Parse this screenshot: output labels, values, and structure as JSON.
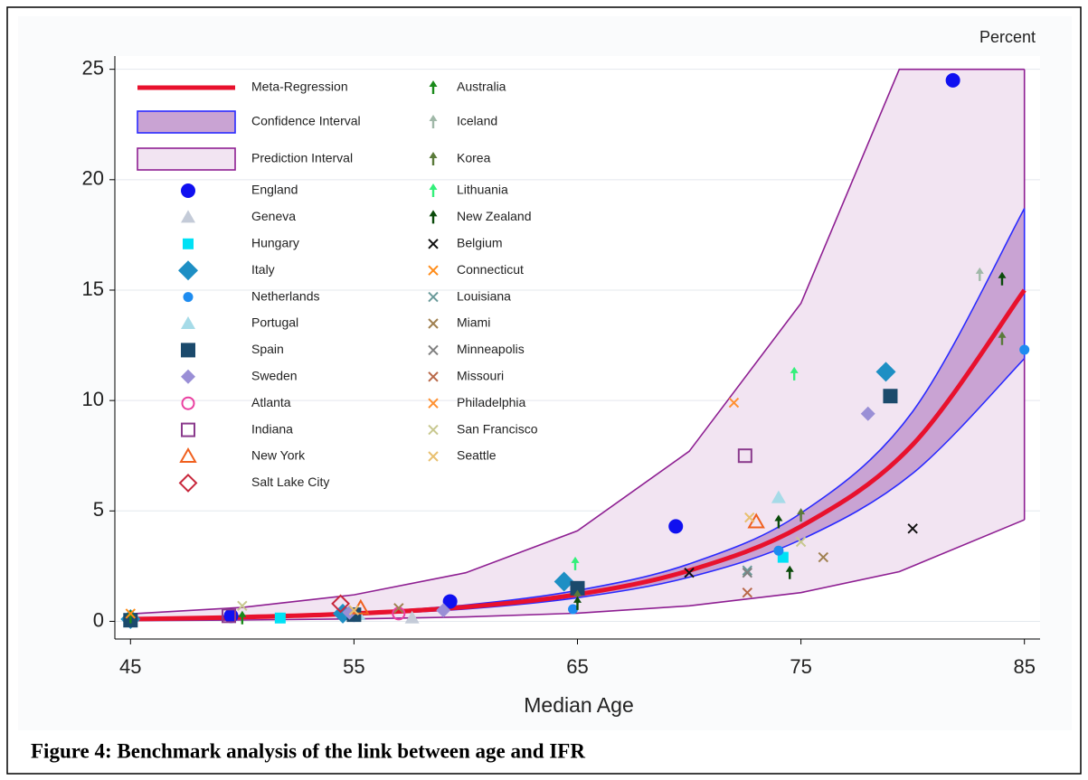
{
  "chart_data": {
    "type": "scatter",
    "ylabel": "Percent",
    "xlabel": "Median Age",
    "caption": "Figure 4: Benchmark analysis of the link between age and IFR",
    "xlim": [
      44.3,
      85.7
    ],
    "ylim": [
      -0.8,
      25.6
    ],
    "xticks": [
      45,
      55,
      65,
      75,
      85
    ],
    "yticks": [
      0,
      5,
      10,
      15,
      20,
      25
    ],
    "grid": true,
    "fits": [
      {
        "name": "Meta-Regression",
        "kind": "line",
        "color": "#e8112d",
        "x": [
          45,
          50,
          55,
          60,
          65,
          70,
          75,
          80,
          85
        ],
        "values": [
          0.1,
          0.19,
          0.35,
          0.65,
          1.22,
          2.3,
          4.3,
          8.0,
          15.0
        ]
      },
      {
        "name": "Confidence Interval",
        "kind": "band",
        "color": "#2a2aff",
        "fill": "#c9a3d3",
        "x": [
          45,
          50,
          55,
          60,
          65,
          70,
          75,
          80,
          85
        ],
        "lower": [
          0.08,
          0.16,
          0.3,
          0.56,
          1.07,
          2.0,
          3.7,
          6.7,
          11.9
        ],
        "upper": [
          0.12,
          0.22,
          0.4,
          0.74,
          1.4,
          2.6,
          4.9,
          9.5,
          18.7
        ]
      },
      {
        "name": "Prediction Interval",
        "kind": "band",
        "color": "#8e1f92",
        "fill": "#f2e4f2",
        "x": [
          45,
          50,
          55,
          60,
          65,
          70,
          75,
          79.4,
          85
        ],
        "lower": [
          0.03,
          0.06,
          0.11,
          0.2,
          0.37,
          0.7,
          1.3,
          2.25,
          4.6
        ],
        "upper": [
          0.34,
          0.63,
          1.2,
          2.2,
          4.1,
          7.7,
          14.4,
          25,
          25
        ]
      }
    ],
    "series": [
      {
        "name": "England",
        "marker": "circle",
        "color": "#1010f0",
        "x": [
          49.5,
          55,
          59.3,
          69.4,
          81.8
        ],
        "values": [
          0.25,
          0.3,
          0.9,
          4.3,
          24.5
        ]
      },
      {
        "name": "Geneva",
        "marker": "triangle",
        "color": "#c4cbd8",
        "x": [
          57.6
        ],
        "values": [
          0.15
        ]
      },
      {
        "name": "Hungary",
        "marker": "square-small",
        "color": "#00e1f5",
        "x": [
          51.7,
          74.2
        ],
        "values": [
          0.15,
          2.9
        ]
      },
      {
        "name": "Italy",
        "marker": "diamond",
        "color": "#1e8fc4",
        "x": [
          45,
          54.5,
          64.4,
          78.8
        ],
        "values": [
          0.1,
          0.35,
          1.8,
          11.3
        ]
      },
      {
        "name": "Netherlands",
        "marker": "dot",
        "color": "#1e8cf0",
        "x": [
          64.8,
          74,
          85
        ],
        "values": [
          0.55,
          3.2,
          12.3
        ]
      },
      {
        "name": "Portugal",
        "marker": "triangle",
        "color": "#a6dbe8",
        "x": [
          55.2,
          74
        ],
        "values": [
          0.3,
          5.6
        ]
      },
      {
        "name": "Spain",
        "marker": "square",
        "color": "#1b4a6c",
        "x": [
          45,
          55,
          65,
          79
        ],
        "values": [
          0.05,
          0.3,
          1.5,
          10.2
        ]
      },
      {
        "name": "Sweden",
        "marker": "diamond-small",
        "color": "#9a8fd6",
        "x": [
          54.8,
          59,
          78
        ],
        "values": [
          0.4,
          0.5,
          9.4
        ]
      },
      {
        "name": "Atlanta",
        "marker": "hollow-circle",
        "color": "#ea3fa0",
        "x": [
          57
        ],
        "values": [
          0.35
        ]
      },
      {
        "name": "Indiana",
        "marker": "hollow-square",
        "color": "#8a3a8c",
        "x": [
          49.4,
          72.5
        ],
        "values": [
          0.25,
          7.5
        ]
      },
      {
        "name": "New York",
        "marker": "hollow-triangle",
        "color": "#f0601e",
        "x": [
          55.3,
          73
        ],
        "values": [
          0.6,
          4.5
        ]
      },
      {
        "name": "Salt Lake City",
        "marker": "hollow-diamond",
        "color": "#c8283c",
        "x": [
          54.4
        ],
        "values": [
          0.8
        ]
      },
      {
        "name": "Australia",
        "marker": "arrow",
        "color": "#1a8a1a",
        "x": [
          45,
          50
        ],
        "values": [
          0.2,
          0.15
        ]
      },
      {
        "name": "Iceland",
        "marker": "arrow",
        "color": "#a0b8a8",
        "x": [
          83
        ],
        "values": [
          15.7
        ]
      },
      {
        "name": "Korea",
        "marker": "arrow",
        "color": "#5a7a3a",
        "x": [
          65,
          75,
          84
        ],
        "values": [
          1.1,
          4.8,
          12.8
        ]
      },
      {
        "name": "Lithuania",
        "marker": "arrow",
        "color": "#33f07a",
        "x": [
          64.9,
          74.7
        ],
        "values": [
          2.6,
          11.2
        ]
      },
      {
        "name": "New Zealand",
        "marker": "arrow",
        "color": "#0a4a0a",
        "x": [
          65,
          74,
          74.5,
          84
        ],
        "values": [
          0.8,
          4.5,
          2.2,
          15.5
        ]
      },
      {
        "name": "Belgium",
        "marker": "x",
        "color": "#111111",
        "x": [
          70,
          80
        ],
        "values": [
          2.2,
          4.2
        ]
      },
      {
        "name": "Connecticut",
        "marker": "x",
        "color": "#ff8c1a",
        "x": [
          45
        ],
        "values": [
          0.35
        ]
      },
      {
        "name": "Louisiana",
        "marker": "x",
        "color": "#6a9a9a",
        "x": [
          72.6
        ],
        "values": [
          2.3
        ]
      },
      {
        "name": "Miami",
        "marker": "x",
        "color": "#a08050",
        "x": [
          57,
          76
        ],
        "values": [
          0.6,
          2.9
        ]
      },
      {
        "name": "Minneapolis",
        "marker": "x",
        "color": "#808080",
        "x": [
          72.6
        ],
        "values": [
          2.2
        ]
      },
      {
        "name": "Missouri",
        "marker": "x",
        "color": "#b86848",
        "x": [
          72.6
        ],
        "values": [
          1.3
        ]
      },
      {
        "name": "Philadelphia",
        "marker": "x",
        "color": "#ff9030",
        "x": [
          72
        ],
        "values": [
          9.9
        ]
      },
      {
        "name": "San Francisco",
        "marker": "x",
        "color": "#c8c890",
        "x": [
          50,
          75
        ],
        "values": [
          0.7,
          3.6
        ]
      },
      {
        "name": "Seattle",
        "marker": "x",
        "color": "#e8c070",
        "x": [
          55,
          72.7
        ],
        "values": [
          0.5,
          4.7
        ]
      }
    ]
  }
}
